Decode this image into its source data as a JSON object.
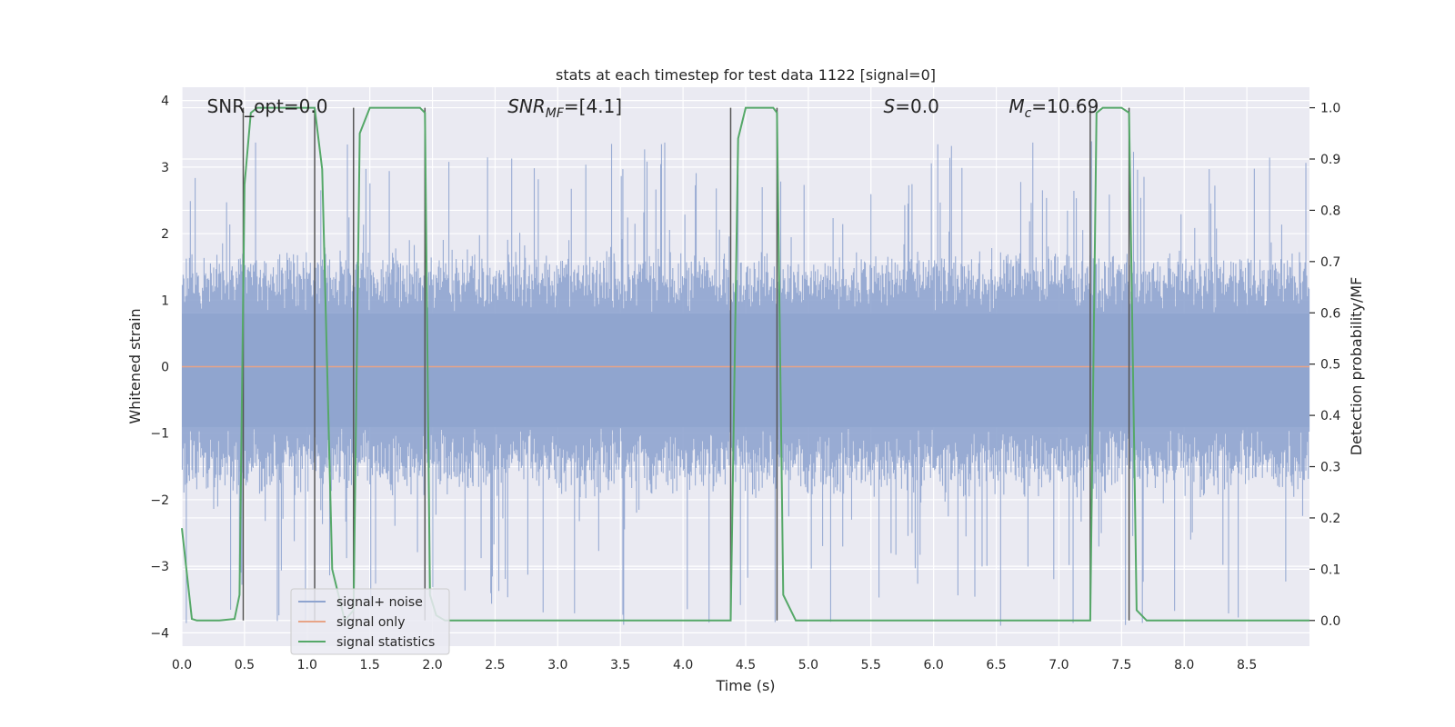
{
  "chart_data": {
    "type": "line",
    "title": "stats at each timestep for test data 1122 [signal=0]",
    "xlabel": "Time (s)",
    "ylabel": "Whitened strain",
    "ylabel_right": "Detection probability/MF",
    "xlim": [
      0,
      9
    ],
    "ylim": [
      -4.2,
      4.2
    ],
    "ylim_right": [
      -0.05,
      1.04
    ],
    "x_ticks": [
      "0.0",
      "0.5",
      "1.0",
      "1.5",
      "2.0",
      "2.5",
      "3.0",
      "3.5",
      "4.0",
      "4.5",
      "5.0",
      "5.5",
      "6.0",
      "6.5",
      "7.0",
      "7.5",
      "8.0",
      "8.5"
    ],
    "x_tick_values": [
      0,
      0.5,
      1,
      1.5,
      2,
      2.5,
      3,
      3.5,
      4,
      4.5,
      5,
      5.5,
      6,
      6.5,
      7,
      7.5,
      8,
      8.5
    ],
    "y_ticks": [
      "4",
      "3",
      "2",
      "1",
      "0",
      "−1",
      "−2",
      "−3",
      "−4"
    ],
    "y_tick_values": [
      4,
      3,
      2,
      1,
      0,
      -1,
      -2,
      -3,
      -4
    ],
    "y_right_ticks": [
      "1.0",
      "0.9",
      "0.8",
      "0.7",
      "0.6",
      "0.5",
      "0.4",
      "0.3",
      "0.2",
      "0.1",
      "0.0"
    ],
    "y_right_tick_values": [
      1.0,
      0.9,
      0.8,
      0.7,
      0.6,
      0.5,
      0.4,
      0.3,
      0.2,
      0.1,
      0.0
    ],
    "grid": true,
    "legend_position": "lower-left",
    "annotations": [
      {
        "text": "SNR_opt=0.0",
        "x": 0.2
      },
      {
        "text": "SNR",
        "sub": "MF",
        "suffix": "=[4.1]",
        "italic": true,
        "x": 2.6
      },
      {
        "text": "S",
        "suffix": "=0.0",
        "italic": true,
        "x": 5.6
      },
      {
        "text": "M",
        "sub": "c",
        "suffix": "=10.69",
        "italic": true,
        "x": 6.6
      }
    ],
    "vlines": [
      0.49,
      1.06,
      1.37,
      1.94,
      4.38,
      4.75,
      7.25,
      7.56
    ],
    "series": [
      {
        "name": "signal+ noise",
        "color": "#8fa4cf",
        "kind": "noise",
        "band": [
          -1.65,
          1.45
        ],
        "peak_max": 3.4,
        "peak_min": -3.9
      },
      {
        "name": "signal only",
        "color": "#e7a487",
        "kind": "constant",
        "value": 0.0
      },
      {
        "name": "signal statistics",
        "color": "#55a868",
        "axis": "right",
        "x": [
          0.0,
          0.08,
          0.12,
          0.2,
          0.3,
          0.42,
          0.46,
          0.5,
          0.55,
          0.6,
          0.7,
          1.0,
          1.06,
          1.12,
          1.2,
          1.3,
          1.37,
          1.42,
          1.5,
          1.7,
          1.9,
          1.94,
          1.98,
          2.03,
          2.1,
          3.0,
          4.0,
          4.38,
          4.44,
          4.5,
          4.6,
          4.72,
          4.75,
          4.8,
          4.9,
          5.5,
          6.5,
          7.25,
          7.3,
          7.35,
          7.5,
          7.56,
          7.62,
          7.7,
          8.0,
          9.0
        ],
        "values": [
          0.18,
          0.003,
          0.0,
          0.0,
          0.0,
          0.003,
          0.05,
          0.85,
          0.99,
          1.0,
          1.0,
          1.0,
          1.0,
          0.88,
          0.1,
          0.0,
          0.02,
          0.95,
          1.0,
          1.0,
          1.0,
          0.99,
          0.05,
          0.01,
          0.0,
          0.0,
          0.0,
          0.0,
          0.94,
          1.0,
          1.0,
          1.0,
          0.99,
          0.05,
          0.0,
          0.0,
          0.0,
          0.0,
          0.99,
          1.0,
          1.0,
          0.99,
          0.02,
          0.0,
          0.0,
          0.0
        ]
      }
    ]
  }
}
